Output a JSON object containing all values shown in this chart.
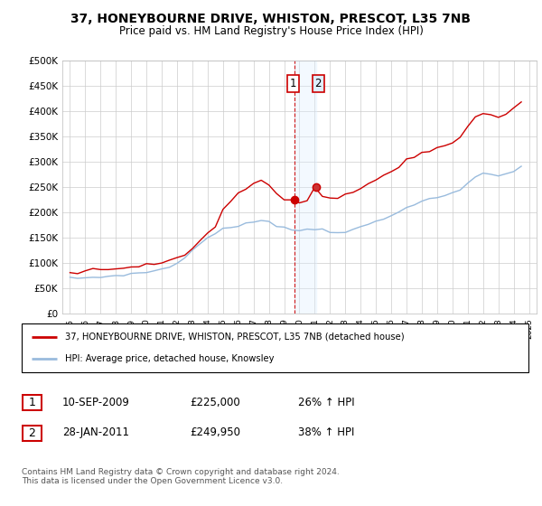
{
  "title": "37, HONEYBOURNE DRIVE, WHISTON, PRESCOT, L35 7NB",
  "subtitle": "Price paid vs. HM Land Registry's House Price Index (HPI)",
  "legend_line1": "37, HONEYBOURNE DRIVE, WHISTON, PRESCOT, L35 7NB (detached house)",
  "legend_line2": "HPI: Average price, detached house, Knowsley",
  "table_rows": [
    {
      "num": "1",
      "date": "10-SEP-2009",
      "price": "£225,000",
      "hpi": "26% ↑ HPI"
    },
    {
      "num": "2",
      "date": "28-JAN-2011",
      "price": "£249,950",
      "hpi": "38% ↑ HPI"
    }
  ],
  "footnote": "Contains HM Land Registry data © Crown copyright and database right 2024.\nThis data is licensed under the Open Government Licence v3.0.",
  "line1_color": "#cc0000",
  "line2_color": "#99bbdd",
  "highlight_color": "#ddeeff",
  "vline_color": "#cc0000",
  "point1_x": 2009.7,
  "point1_y": 225000,
  "point2_x": 2011.08,
  "point2_y": 249950,
  "ylim": [
    0,
    500000
  ],
  "yticks": [
    0,
    50000,
    100000,
    150000,
    200000,
    250000,
    300000,
    350000,
    400000,
    450000,
    500000
  ],
  "xlim_start": 1994.5,
  "xlim_end": 2025.5,
  "background_color": "#ffffff",
  "grid_color": "#cccccc",
  "hpi_values": [
    70000,
    70500,
    71000,
    71500,
    72500,
    74000,
    75500,
    77000,
    78500,
    80000,
    82000,
    85000,
    88000,
    92000,
    100000,
    112000,
    125000,
    138000,
    150000,
    160000,
    167000,
    170000,
    173000,
    177000,
    181000,
    186000,
    183000,
    175000,
    170000,
    166000,
    165000,
    166000,
    168000,
    167000,
    163000,
    161000,
    162000,
    165000,
    170000,
    177000,
    182000,
    187000,
    193000,
    202000,
    212000,
    217000,
    222000,
    225000,
    229000,
    234000,
    237000,
    244000,
    258000,
    270000,
    278000,
    276000,
    274000,
    276000,
    281000,
    290000
  ],
  "price_values": [
    82000,
    83000,
    85000,
    86000,
    88000,
    89000,
    91000,
    92000,
    93000,
    95000,
    96000,
    98000,
    100000,
    103000,
    108000,
    116000,
    128000,
    143000,
    160000,
    175000,
    205000,
    220000,
    238000,
    248000,
    258000,
    265000,
    255000,
    235000,
    222000,
    215000,
    218000,
    222000,
    228000,
    232000,
    230000,
    228000,
    232000,
    238000,
    248000,
    258000,
    266000,
    273000,
    280000,
    292000,
    305000,
    310000,
    316000,
    320000,
    325000,
    333000,
    338000,
    348000,
    368000,
    388000,
    398000,
    393000,
    388000,
    395000,
    408000,
    415000
  ]
}
